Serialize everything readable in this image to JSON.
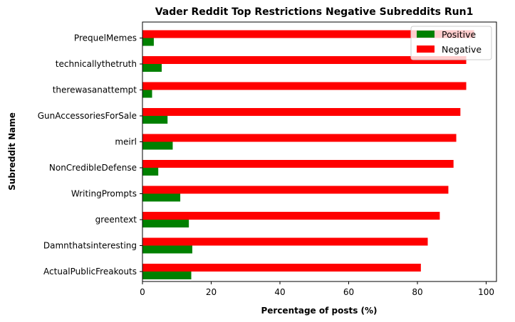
{
  "chart_data": {
    "type": "bar",
    "orientation": "horizontal",
    "title": "Vader Reddit Top Restrictions Negative Subreddits Run1",
    "xlabel": "Percentage of posts (%)",
    "ylabel": "Subreddit Name",
    "xlim": [
      0,
      103
    ],
    "xticks": [
      0,
      20,
      40,
      60,
      80,
      100
    ],
    "categories": [
      "ActualPublicFreakouts",
      "Damnthatsinteresting",
      "greentext",
      "WritingPrompts",
      "NonCredibleDefense",
      "meirl",
      "GunAccessoriesForSale",
      "therewasanattempt",
      "technicallythetruth",
      "PrequelMemes"
    ],
    "series": [
      {
        "name": "Positive",
        "color": "#008000",
        "values": [
          14.2,
          14.5,
          13.5,
          11.0,
          4.6,
          8.8,
          7.3,
          2.8,
          5.6,
          3.3
        ]
      },
      {
        "name": "Negative",
        "color": "#ff0000",
        "values": [
          81.0,
          83.0,
          86.5,
          89.0,
          90.5,
          91.3,
          92.5,
          94.2,
          94.2,
          96.5
        ]
      }
    ],
    "legend": "upper right",
    "grid": false
  }
}
